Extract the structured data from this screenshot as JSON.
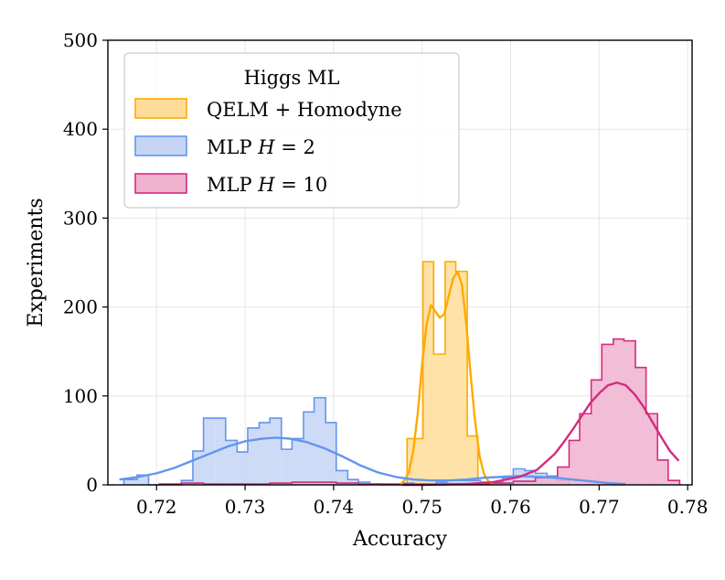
{
  "chart_data": {
    "type": "histogram",
    "xlabel": "Accuracy",
    "ylabel": "Experiments",
    "xlim": [
      0.7145,
      0.7805
    ],
    "ylim": [
      0,
      500
    ],
    "x_ticks": [
      0.72,
      0.73,
      0.74,
      0.75,
      0.76,
      0.77,
      0.78
    ],
    "x_tick_labels": [
      "0.72",
      "0.73",
      "0.74",
      "0.75",
      "0.76",
      "0.77",
      "0.78"
    ],
    "y_ticks": [
      0,
      100,
      200,
      300,
      400,
      500
    ],
    "y_tick_labels": [
      "0",
      "100",
      "200",
      "300",
      "400",
      "500"
    ],
    "grid": true,
    "legend": {
      "title": "Higgs ML",
      "placement": "top-left",
      "entries": [
        {
          "prefix": "QELM + Homodyne",
          "var": "",
          "suffix": ""
        },
        {
          "prefix": "MLP ",
          "var": "H",
          "suffix": " = 2"
        },
        {
          "prefix": "MLP ",
          "var": "H",
          "suffix": " = 10"
        }
      ]
    },
    "series": [
      {
        "name": "QELM + Homodyne",
        "color": "#FFAA00",
        "fill": "#FFDD99",
        "bin_edges": [
          0.7483,
          0.7501,
          0.7513,
          0.7526,
          0.7538,
          0.7551,
          0.7563
        ],
        "counts": [
          52,
          251,
          147,
          251,
          240,
          55
        ],
        "kde": {
          "x": [
            0.7475,
            0.748,
            0.7485,
            0.749,
            0.7495,
            0.75,
            0.7505,
            0.751,
            0.7515,
            0.752,
            0.7525,
            0.753,
            0.7535,
            0.754,
            0.7545,
            0.755,
            0.7555,
            0.756,
            0.7565,
            0.757,
            0.7575,
            0.758
          ],
          "y": [
            0,
            5,
            14,
            38,
            80,
            135,
            180,
            202,
            195,
            188,
            192,
            212,
            232,
            240,
            225,
            180,
            122,
            70,
            32,
            12,
            4,
            0
          ]
        }
      },
      {
        "name": "MLP H = 2",
        "color": "#6495ED",
        "fill": "#C6D5F6",
        "bin_edges": [
          0.7163,
          0.7178,
          0.7191,
          0.7203,
          0.7216,
          0.7228,
          0.7241,
          0.7253,
          0.7266,
          0.7278,
          0.7291,
          0.7303,
          0.7316,
          0.7328,
          0.7341,
          0.7353,
          0.7366,
          0.7378,
          0.7391,
          0.7403,
          0.7416,
          0.7428,
          0.7441,
          0.7453,
          0.7466,
          0.7478,
          0.7491,
          0.7503,
          0.7516,
          0.7528,
          0.7541,
          0.7553,
          0.7566,
          0.7578,
          0.7591,
          0.7603,
          0.7616,
          0.7628,
          0.7641,
          0.7653,
          0.7666
        ],
        "counts": [
          6,
          11,
          0,
          0,
          0,
          5,
          38,
          75,
          75,
          50,
          37,
          64,
          70,
          75,
          40,
          52,
          82,
          98,
          70,
          16,
          6,
          3,
          1,
          0,
          0,
          2,
          0,
          0,
          3,
          5,
          5,
          5,
          3,
          3,
          8,
          18,
          16,
          13,
          10,
          5
        ],
        "kde": {
          "x": [
            0.7158,
            0.718,
            0.72,
            0.722,
            0.724,
            0.726,
            0.728,
            0.73,
            0.732,
            0.7335,
            0.735,
            0.737,
            0.739,
            0.741,
            0.743,
            0.745,
            0.747,
            0.749,
            0.751,
            0.753,
            0.755,
            0.757,
            0.759,
            0.761,
            0.763,
            0.765,
            0.767,
            0.769,
            0.771,
            0.773
          ],
          "y": [
            6,
            9,
            13,
            19,
            27,
            35,
            43,
            49,
            52,
            53,
            52,
            48,
            41,
            32,
            22,
            14,
            9,
            6,
            5,
            5,
            6,
            8,
            9,
            10,
            9,
            8,
            6,
            4,
            2,
            1
          ]
        }
      },
      {
        "name": "MLP H = 10",
        "color": "#D62B7E",
        "fill": "#F0B1CF",
        "bin_edges": [
          0.7203,
          0.7228,
          0.7253,
          0.7278,
          0.7303,
          0.7328,
          0.7353,
          0.7378,
          0.7403,
          0.7428,
          0.7453,
          0.7478,
          0.7503,
          0.7528,
          0.7553,
          0.7578,
          0.7603,
          0.7628,
          0.7653,
          0.7666,
          0.7678,
          0.7691,
          0.7703,
          0.7716,
          0.7728,
          0.7741,
          0.7753,
          0.7766,
          0.7778,
          0.7791
        ],
        "counts": [
          1,
          2,
          1,
          1,
          1,
          2,
          3,
          3,
          2,
          1,
          1,
          1,
          1,
          1,
          1,
          2,
          4,
          8,
          20,
          50,
          80,
          118,
          158,
          164,
          162,
          132,
          80,
          28,
          5
        ],
        "kde": {
          "x": [
            0.7478,
            0.75,
            0.755,
            0.758,
            0.761,
            0.763,
            0.765,
            0.766,
            0.767,
            0.768,
            0.769,
            0.77,
            0.771,
            0.772,
            0.773,
            0.774,
            0.775,
            0.776,
            0.777,
            0.778,
            0.779
          ],
          "y": [
            0,
            0,
            1,
            3,
            9,
            17,
            35,
            48,
            62,
            77,
            92,
            103,
            112,
            115,
            112,
            102,
            88,
            71,
            54,
            38,
            27
          ]
        }
      }
    ]
  }
}
